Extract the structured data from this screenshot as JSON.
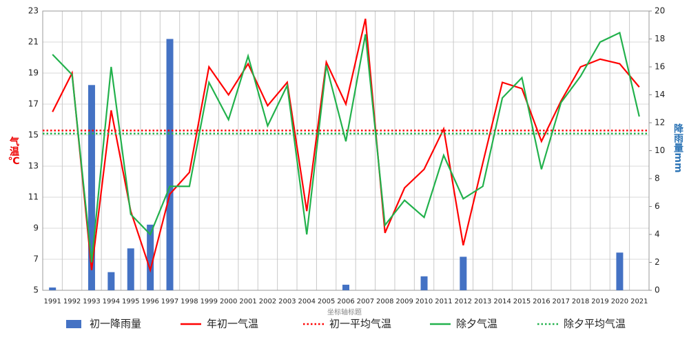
{
  "chart_data": {
    "type": "combo",
    "x_label": "坐标轴标题",
    "y_label": "气温℃",
    "y2_label": "降雨量mm",
    "categories": [
      "1991",
      "1992",
      "1993",
      "1994",
      "1995",
      "1996",
      "1997",
      "1998",
      "1999",
      "2000",
      "2001",
      "2002",
      "2003",
      "2004",
      "2005",
      "2006",
      "2007",
      "2008",
      "2009",
      "2010",
      "2011",
      "2012",
      "2013",
      "2014",
      "2015",
      "2016",
      "2017",
      "2018",
      "2019",
      "2020",
      "2021"
    ],
    "ylim": [
      5,
      23
    ],
    "yticks": [
      5,
      7,
      9,
      11,
      13,
      15,
      17,
      19,
      21,
      23
    ],
    "y2lim": [
      0,
      20
    ],
    "y2ticks": [
      0,
      2,
      4,
      6,
      8,
      10,
      12,
      14,
      16,
      18,
      20
    ],
    "grid": true,
    "series": [
      {
        "name": "初一降雨量",
        "type": "bar",
        "axis": "y2",
        "color": "#4472c4",
        "values": [
          0.2,
          0,
          14.7,
          1.3,
          3.0,
          4.7,
          18.0,
          0,
          0,
          0,
          0,
          0,
          0,
          0,
          0,
          0.4,
          0,
          0,
          0,
          1.0,
          0,
          2.4,
          0,
          0,
          0,
          0,
          0,
          0,
          0,
          2.7,
          0
        ]
      },
      {
        "name": "年初一气温",
        "type": "line",
        "color": "#ff0000",
        "values": [
          16.5,
          19.0,
          6.3,
          16.6,
          10.1,
          6.3,
          11.2,
          12.6,
          19.4,
          17.6,
          19.6,
          16.9,
          18.4,
          10.1,
          19.7,
          17.0,
          22.5,
          8.7,
          11.6,
          12.8,
          15.4,
          7.9,
          13.2,
          18.4,
          18.0,
          14.6,
          17.2,
          19.4,
          19.9,
          19.6,
          18.1
        ]
      },
      {
        "name": "初一平均气温",
        "type": "hline",
        "color": "#ff0000",
        "value": 15.3
      },
      {
        "name": "除夕气温",
        "type": "line",
        "color": "#22b14c",
        "values": [
          20.2,
          18.9,
          6.8,
          19.4,
          9.9,
          8.6,
          11.7,
          11.7,
          18.4,
          16.0,
          20.1,
          15.6,
          18.2,
          8.6,
          19.5,
          14.6,
          21.5,
          9.2,
          10.8,
          9.7,
          13.7,
          10.9,
          11.7,
          17.4,
          18.7,
          12.8,
          17.1,
          18.8,
          21.0,
          21.6,
          16.2
        ]
      },
      {
        "name": "除夕平均气温",
        "type": "hline",
        "color": "#22b14c",
        "value": 15.1
      }
    ]
  }
}
